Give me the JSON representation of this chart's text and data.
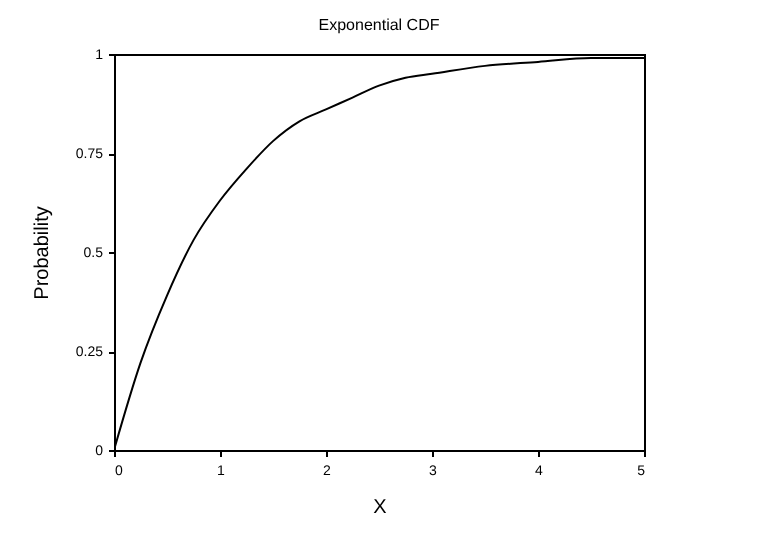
{
  "chart_data": {
    "type": "line",
    "title": "Exponential CDF",
    "xlabel": "X",
    "ylabel": "Probability",
    "x": [
      0,
      0.25,
      0.5,
      0.75,
      1,
      1.25,
      1.5,
      1.75,
      2,
      2.25,
      2.5,
      2.75,
      3,
      3.5,
      4,
      4.5,
      5
    ],
    "values": [
      0,
      0.22,
      0.39,
      0.53,
      0.63,
      0.71,
      0.78,
      0.83,
      0.86,
      0.89,
      0.92,
      0.94,
      0.95,
      0.97,
      0.98,
      0.99,
      0.99
    ],
    "color": "#000000",
    "xlim": [
      0,
      5
    ],
    "ylim": [
      0,
      1
    ],
    "xticks": [
      0,
      1,
      2,
      3,
      4,
      5
    ],
    "yticks": [
      0,
      0.25,
      0.5,
      0.75,
      1
    ]
  }
}
